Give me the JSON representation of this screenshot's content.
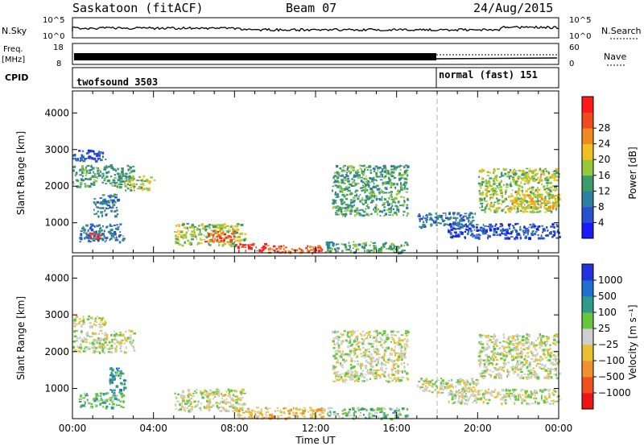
{
  "header": {
    "station": "Saskatoon (fitACF)",
    "beam": "Beam 07",
    "date": "24/Aug/2015"
  },
  "top_panels": {
    "nsky_label": "N.Sky",
    "nsky_ticks": [
      "10^5",
      "10^0"
    ],
    "nsearch_label": "N.Search",
    "nsearch_ticks": [
      "10^5",
      "10^0"
    ],
    "freq_label": "Freq.",
    "freq_unit": "[MHz]",
    "freq_ticks": [
      "18",
      "8"
    ],
    "nave_label": "Nave",
    "nave_ticks": [
      "60",
      "0"
    ],
    "cpid_label": "CPID",
    "cpid_segments": [
      {
        "name": "twofsound 3503",
        "start_hour": 0,
        "end_hour": 18
      },
      {
        "name": "normal (fast) 151",
        "start_hour": 18,
        "end_hour": 24
      }
    ]
  },
  "chart_data": [
    {
      "type": "heatmap",
      "panel": "power",
      "xlabel": "",
      "ylabel": "Slant Range [km]",
      "xlim": [
        0,
        24
      ],
      "ylim": [
        180,
        4600
      ],
      "yticks": [
        1000,
        2000,
        3000,
        4000
      ],
      "colorbar": {
        "label": "Power [dB]",
        "ticks": [
          "4",
          "8",
          "12",
          "16",
          "20",
          "24",
          "28"
        ],
        "levels": [
          0,
          4,
          8,
          12,
          16,
          20,
          24,
          28,
          32
        ],
        "colors": [
          "#1a1aff",
          "#2a4fd0",
          "#2f7fa0",
          "#3d9a6a",
          "#95c83a",
          "#f0c020",
          "#f08a20",
          "#f04a20",
          "#ff1a1a"
        ]
      },
      "regions": [
        {
          "t": [
            0.0,
            3.0
          ],
          "r": [
            2000,
            2600
          ],
          "level": 3
        },
        {
          "t": [
            0.0,
            1.6
          ],
          "r": [
            2700,
            3000
          ],
          "level": 1
        },
        {
          "t": [
            0.3,
            2.5
          ],
          "r": [
            500,
            1000
          ],
          "level": 2
        },
        {
          "t": [
            0.8,
            1.3
          ],
          "r": [
            600,
            750
          ],
          "level": 7
        },
        {
          "t": [
            1.0,
            2.2
          ],
          "r": [
            1200,
            1800
          ],
          "level": 2
        },
        {
          "t": [
            2.5,
            4.0
          ],
          "r": [
            1900,
            2300
          ],
          "level": 4
        },
        {
          "t": [
            5.0,
            8.5
          ],
          "r": [
            400,
            1000
          ],
          "level": 4
        },
        {
          "t": [
            6.5,
            8.0
          ],
          "r": [
            500,
            800
          ],
          "level": 7
        },
        {
          "t": [
            8.0,
            9.5
          ],
          "r": [
            250,
            450
          ],
          "level": 8
        },
        {
          "t": [
            9.5,
            12.5
          ],
          "r": [
            200,
            400
          ],
          "level": 7
        },
        {
          "t": [
            12.5,
            16.5
          ],
          "r": [
            200,
            500
          ],
          "level": 3
        },
        {
          "t": [
            12.8,
            16.5
          ],
          "r": [
            1200,
            2600
          ],
          "level": 3
        },
        {
          "t": [
            17.0,
            20.0
          ],
          "r": [
            900,
            1300
          ],
          "level": 2
        },
        {
          "t": [
            18.5,
            24.0
          ],
          "r": [
            600,
            1000
          ],
          "level": 1
        },
        {
          "t": [
            20.0,
            24.0
          ],
          "r": [
            1300,
            2500
          ],
          "level": 4
        },
        {
          "t": [
            21.5,
            24.0
          ],
          "r": [
            1400,
            1800
          ],
          "level": 5
        }
      ]
    },
    {
      "type": "heatmap",
      "panel": "velocity",
      "xlabel": "Time UT",
      "ylabel": "Slant Range [km]",
      "xlim": [
        0,
        24
      ],
      "ylim": [
        180,
        4600
      ],
      "yticks": [
        1000,
        2000,
        3000,
        4000
      ],
      "xticks": [
        "00:00",
        "04:00",
        "08:00",
        "12:00",
        "16:00",
        "20:00",
        "00:00"
      ],
      "colorbar": {
        "label": "Velocity [m s⁻¹]",
        "ticks": [
          "1000",
          "500",
          "100",
          "25",
          "−25",
          "−100",
          "−500",
          "−1000"
        ],
        "colors": [
          "#2233dd",
          "#1f6fd0",
          "#2f9a8a",
          "#66c640",
          "#cfcfcf",
          "#e8c030",
          "#f09030",
          "#f05020",
          "#ee1515"
        ]
      },
      "regions": [
        {
          "t": [
            0.0,
            3.0
          ],
          "r": [
            2000,
            2600
          ],
          "level": 4
        },
        {
          "t": [
            0.0,
            1.6
          ],
          "r": [
            2700,
            3000
          ],
          "level": 4
        },
        {
          "t": [
            0.3,
            2.5
          ],
          "r": [
            500,
            900
          ],
          "level": 3
        },
        {
          "t": [
            1.8,
            2.6
          ],
          "r": [
            900,
            1600
          ],
          "level": 2
        },
        {
          "t": [
            5.0,
            8.5
          ],
          "r": [
            400,
            1000
          ],
          "level": 4
        },
        {
          "t": [
            8.0,
            12.5
          ],
          "r": [
            200,
            500
          ],
          "level": 5
        },
        {
          "t": [
            12.5,
            16.5
          ],
          "r": [
            200,
            500
          ],
          "level": 3
        },
        {
          "t": [
            12.8,
            16.5
          ],
          "r": [
            1200,
            2600
          ],
          "level": 4
        },
        {
          "t": [
            17.0,
            20.0
          ],
          "r": [
            900,
            1300
          ],
          "level": 4
        },
        {
          "t": [
            18.5,
            24.0
          ],
          "r": [
            600,
            1000
          ],
          "level": 4
        },
        {
          "t": [
            20.0,
            24.0
          ],
          "r": [
            1300,
            2500
          ],
          "level": 4
        }
      ]
    }
  ],
  "colors": {
    "axis": "#000000",
    "dash": "#b0b0b0"
  }
}
